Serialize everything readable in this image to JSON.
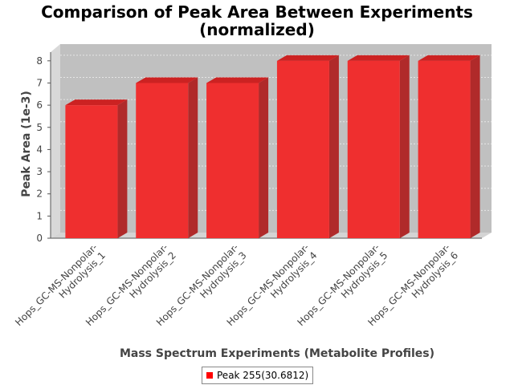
{
  "chart_data": {
    "type": "bar",
    "title_line1": "Comparison of Peak Area Between Experiments",
    "title_line2": "(normalized)",
    "xlabel": "Mass Spectrum Experiments (Metabolite Profiles)",
    "ylabel": "Peak Area (1e-3)",
    "categories": [
      [
        "Hops_GC-MS-Nonpolar-",
        "Hydrolysis_1"
      ],
      [
        "Hops_GC-MS-Nonpolar-",
        "Hydrolysis_2"
      ],
      [
        "Hops_GC-MS-Nonpolar-",
        "Hydrolysis_3"
      ],
      [
        "Hops_GC-MS-Nonpolar-",
        "Hydrolysis_4"
      ],
      [
        "Hops_GC-MS-Nonpolar-",
        "Hydrolysis_5"
      ],
      [
        "Hops_GC-MS-Nonpolar-",
        "Hydrolysis_6"
      ]
    ],
    "series": [
      {
        "name": "Peak 255(30.6812)",
        "values": [
          6,
          7,
          7,
          8,
          8,
          8
        ]
      }
    ],
    "ylim": [
      0,
      8.5
    ],
    "yticks": [
      0,
      1,
      2,
      3,
      4,
      5,
      6,
      7,
      8
    ],
    "grid": true,
    "legend_position": "bottom",
    "colors": {
      "bar_front": "#ef2f2f",
      "bar_top": "#cc2222",
      "bar_side": "#b02a2a",
      "plot_back": "#c0c0c0",
      "plot_floor": "#d4d4d4",
      "grid": "#e6e6e6"
    }
  }
}
